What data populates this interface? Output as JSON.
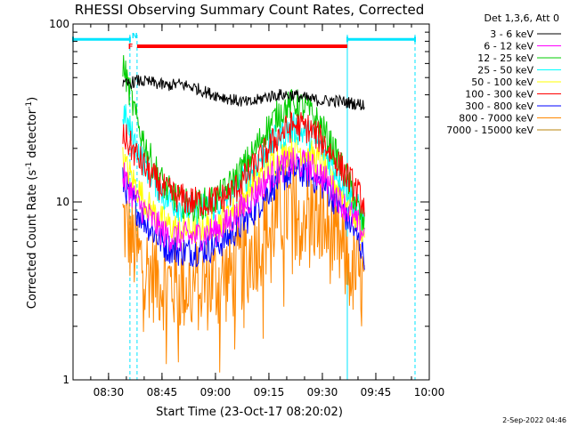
{
  "chart_data": {
    "type": "line",
    "title": "RHESSI Observing Summary Count Rates, Corrected",
    "xlabel": "Start Time (23-Oct-17 08:20:02)",
    "ylabel": "Corrected Count Rate (s⁻¹ detector⁻¹)",
    "ylabel_main": "Corrected Count Rate (s",
    "ylabel_sup1": "-1",
    "ylabel_mid": " detector",
    "ylabel_sup2": "-1",
    "ylabel_end": ")",
    "xlim": [
      "08:20:02",
      "10:00:00"
    ],
    "ylim": [
      1,
      100
    ],
    "yscale": "log",
    "x_ticks": [
      "08:30",
      "08:45",
      "09:00",
      "09:15",
      "09:30",
      "09:45",
      "10:00"
    ],
    "x_tick_minutes": [
      30,
      45,
      60,
      75,
      90,
      105,
      120
    ],
    "y_ticks": [
      "1",
      "10",
      "100"
    ],
    "y_tick_values": [
      1,
      10,
      100
    ],
    "legend_header": "Det 1,3,6, Att 0",
    "legend_position": "right",
    "series": [
      {
        "name": "3 - 6 keV",
        "color": "#000000",
        "x": [
          "08:34",
          "08:38",
          "08:42",
          "08:46",
          "08:50",
          "08:54",
          "08:58",
          "09:02",
          "09:06",
          "09:10",
          "09:14",
          "09:18",
          "09:22",
          "09:26",
          "09:30",
          "09:34",
          "09:38",
          "09:42"
        ],
        "y": [
          45,
          48,
          47,
          45,
          46,
          44,
          41,
          39,
          37,
          36,
          39,
          40,
          40,
          38,
          37,
          37,
          36,
          35
        ]
      },
      {
        "name": "6 - 12 keV",
        "color": "#ff00ff",
        "x": [
          "08:34",
          "08:38",
          "08:42",
          "08:46",
          "08:50",
          "08:54",
          "08:58",
          "09:02",
          "09:06",
          "09:10",
          "09:14",
          "09:18",
          "09:22",
          "09:26",
          "09:30",
          "09:34",
          "09:38",
          "09:42"
        ],
        "y": [
          14,
          10,
          8,
          6.5,
          6.3,
          6.4,
          6.7,
          7.2,
          8.5,
          10.5,
          13,
          15.5,
          16.5,
          16,
          14,
          11,
          8.5,
          6.5
        ]
      },
      {
        "name": "12 - 25 keV",
        "color": "#00cc00",
        "x": [
          "08:34",
          "08:38",
          "08:42",
          "08:46",
          "08:50",
          "08:54",
          "08:58",
          "09:02",
          "09:06",
          "09:10",
          "09:14",
          "09:18",
          "09:22",
          "09:26",
          "09:30",
          "09:34",
          "09:38",
          "09:42"
        ],
        "y": [
          60,
          28,
          17,
          12,
          10,
          9.5,
          10,
          11,
          14,
          18,
          25,
          32,
          36,
          33,
          26,
          18,
          12,
          7
        ]
      },
      {
        "name": "25 - 50 keV",
        "color": "#00ffff",
        "x": [
          "08:34",
          "08:38",
          "08:42",
          "08:46",
          "08:50",
          "08:54",
          "08:58",
          "09:02",
          "09:06",
          "09:10",
          "09:14",
          "09:18",
          "09:22",
          "09:26",
          "09:30",
          "09:34",
          "09:38",
          "09:42"
        ],
        "y": [
          32,
          20,
          14,
          10.5,
          9.5,
          9,
          9.3,
          10,
          12,
          15,
          19,
          24,
          26,
          24,
          20,
          15,
          11,
          7.5
        ]
      },
      {
        "name": "50 - 100 keV",
        "color": "#ffff00",
        "x": [
          "08:34",
          "08:38",
          "08:42",
          "08:46",
          "08:50",
          "08:54",
          "08:58",
          "09:02",
          "09:06",
          "09:10",
          "09:14",
          "09:18",
          "09:22",
          "09:26",
          "09:30",
          "09:34",
          "09:38",
          "09:42"
        ],
        "y": [
          17,
          12,
          9,
          7.5,
          7,
          7,
          7.3,
          8,
          9.5,
          12,
          15,
          18,
          20,
          19,
          16,
          12.5,
          9.5,
          6.5
        ]
      },
      {
        "name": "100 - 300 keV",
        "color": "#ff0000",
        "x": [
          "08:34",
          "08:38",
          "08:42",
          "08:46",
          "08:50",
          "08:54",
          "08:58",
          "09:02",
          "09:06",
          "09:10",
          "09:14",
          "09:18",
          "09:22",
          "09:26",
          "09:30",
          "09:34",
          "09:38",
          "09:42"
        ],
        "y": [
          24,
          18,
          14,
          11.5,
          10.5,
          10,
          10,
          10.5,
          12,
          15,
          19,
          24,
          27,
          26,
          22,
          17,
          13,
          9.5
        ]
      },
      {
        "name": "300 - 800 keV",
        "color": "#0000ff",
        "x": [
          "08:34",
          "08:38",
          "08:42",
          "08:46",
          "08:50",
          "08:54",
          "08:58",
          "09:02",
          "09:06",
          "09:10",
          "09:14",
          "09:18",
          "09:22",
          "09:26",
          "09:30",
          "09:34",
          "09:38",
          "09:42"
        ],
        "y": [
          13,
          9,
          7,
          5.6,
          5.3,
          5.3,
          5.5,
          6,
          7,
          8.5,
          11,
          13.5,
          15,
          14.5,
          12.5,
          10,
          7.5,
          5
        ]
      },
      {
        "name": "800 - 7000 keV",
        "color": "#ff8800",
        "x": [
          "08:34",
          "08:38",
          "08:42",
          "08:46",
          "08:50",
          "08:54",
          "08:58",
          "09:02",
          "09:06",
          "09:10",
          "09:14",
          "09:18",
          "09:22",
          "09:26",
          "09:30",
          "09:34",
          "09:38",
          "09:42"
        ],
        "y": [
          8,
          5,
          4,
          3.5,
          3.4,
          3.4,
          3.5,
          3.7,
          4.2,
          5.2,
          6.8,
          8.5,
          9.5,
          9,
          7.5,
          5.8,
          4.3,
          3.2
        ]
      },
      {
        "name": "7000 - 15000 keV",
        "color": "#b8860b",
        "x": [],
        "y": []
      }
    ],
    "attenuator_bar": {
      "label": "F",
      "color": "#ff0000",
      "start": "08:38",
      "end": "09:37",
      "level": 75
    },
    "night_bars": [
      {
        "start": "08:20:02",
        "end": "08:36",
        "level": 82
      },
      {
        "start": "09:37",
        "end": "09:56",
        "level": 82
      }
    ],
    "night_label": "N",
    "night_color": "#00e5ff",
    "night_boundaries": [
      {
        "time": "08:36",
        "style": "dashed"
      },
      {
        "time": "08:38",
        "style": "dashed"
      },
      {
        "time": "09:37",
        "style": "solid"
      },
      {
        "time": "09:56",
        "style": "dashed"
      }
    ],
    "grid": false
  },
  "footer": {
    "timestamp": "2-Sep-2022 04:46"
  }
}
